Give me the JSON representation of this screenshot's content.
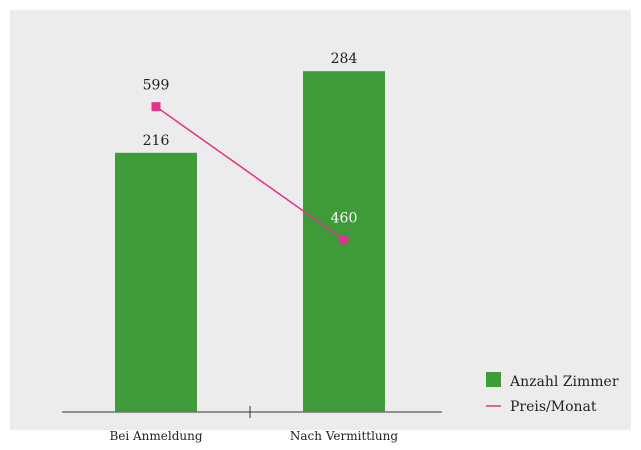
{
  "chart_data": {
    "type": "bar",
    "categories": [
      "Bei Anmeldung",
      "Nach Vermittlung"
    ],
    "series": [
      {
        "name": "Anzahl Zimmer",
        "type": "bar",
        "values": [
          216,
          284
        ],
        "color": "#3f9a3a"
      },
      {
        "name": "Preis/Monat",
        "type": "line",
        "values": [
          599,
          460
        ],
        "color": "#e0338a"
      }
    ],
    "bar_axis_range": [
      0,
      300
    ],
    "line_axis_range": [
      280,
      700
    ],
    "legend_position": "bottom-right",
    "grid": false
  },
  "style": {
    "background": "#ececec",
    "axis_color": "#333333",
    "line_label_colors": [
      "#222222",
      "#ffffff"
    ]
  }
}
